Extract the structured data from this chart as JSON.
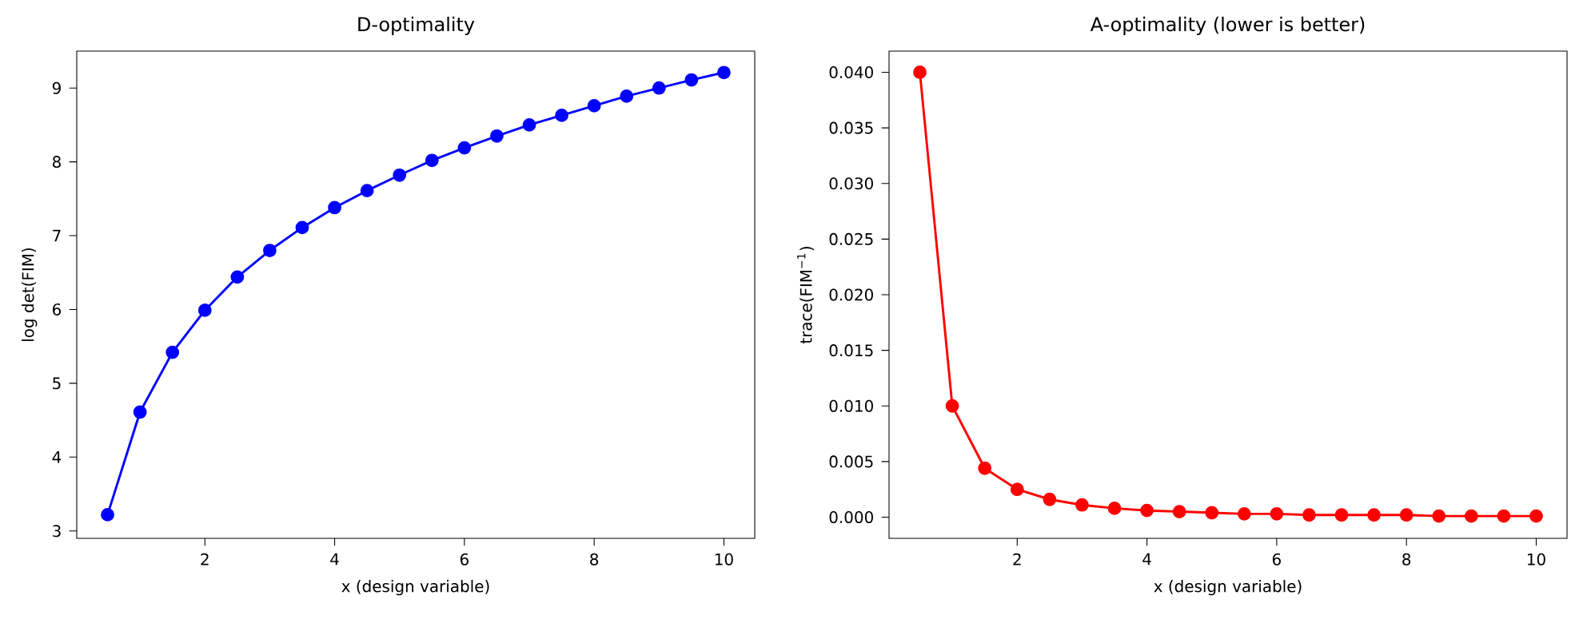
{
  "chart_data": [
    {
      "type": "line",
      "title": "D-optimality",
      "xlabel": "x (design variable)",
      "ylabel": "log det(FIM)",
      "x": [
        0.5,
        1,
        1.5,
        2,
        2.5,
        3,
        3.5,
        4,
        4.5,
        5,
        5.5,
        6,
        6.5,
        7,
        7.5,
        8,
        8.5,
        9,
        9.5,
        10
      ],
      "series": [
        {
          "color": "#0000ff",
          "values": [
            3.22,
            4.61,
            5.42,
            5.99,
            6.44,
            6.8,
            7.11,
            7.38,
            7.61,
            7.82,
            8.02,
            8.19,
            8.35,
            8.5,
            8.63,
            8.76,
            8.89,
            9.0,
            9.11,
            9.21
          ]
        }
      ],
      "xlim": [
        0.025,
        10.475
      ],
      "ylim": [
        2.9,
        9.5
      ],
      "xticks": [
        2,
        4,
        6,
        8,
        10
      ],
      "yticks": [
        3,
        4,
        5,
        6,
        7,
        8,
        9
      ],
      "marker": "circle",
      "line_style": "solid",
      "grid": false
    },
    {
      "type": "line",
      "title": "A-optimality (lower is better)",
      "xlabel": "x (design variable)",
      "ylabel": "trace(FIM$^{−1}$)",
      "x": [
        0.5,
        1,
        1.5,
        2,
        2.5,
        3,
        3.5,
        4,
        4.5,
        5,
        5.5,
        6,
        6.5,
        7,
        7.5,
        8,
        8.5,
        9,
        9.5,
        10
      ],
      "series": [
        {
          "color": "#ff0000",
          "values": [
            0.04,
            0.01,
            0.0044,
            0.0025,
            0.0016,
            0.0011,
            0.0008,
            0.0006,
            0.0005,
            0.0004,
            0.0003,
            0.0003,
            0.0002,
            0.0002,
            0.0002,
            0.0002,
            0.0001,
            0.0001,
            0.0001,
            0.0001
          ]
        }
      ],
      "xlim": [
        0.025,
        10.475
      ],
      "ylim": [
        -0.0019,
        0.0419
      ],
      "xticks": [
        2,
        4,
        6,
        8,
        10
      ],
      "yticks": [
        {
          "value": 0,
          "label": "0.000"
        },
        {
          "value": 0.005,
          "label": "0.005"
        },
        {
          "value": 0.01,
          "label": "0.010"
        },
        {
          "value": 0.015,
          "label": "0.015"
        },
        {
          "value": 0.02,
          "label": "0.020"
        },
        {
          "value": 0.025,
          "label": "0.025"
        },
        {
          "value": 0.03,
          "label": "0.030"
        },
        {
          "value": 0.035,
          "label": "0.035"
        },
        {
          "value": 0.04,
          "label": "0.040"
        }
      ],
      "marker": "circle",
      "line_style": "solid",
      "grid": false
    }
  ]
}
